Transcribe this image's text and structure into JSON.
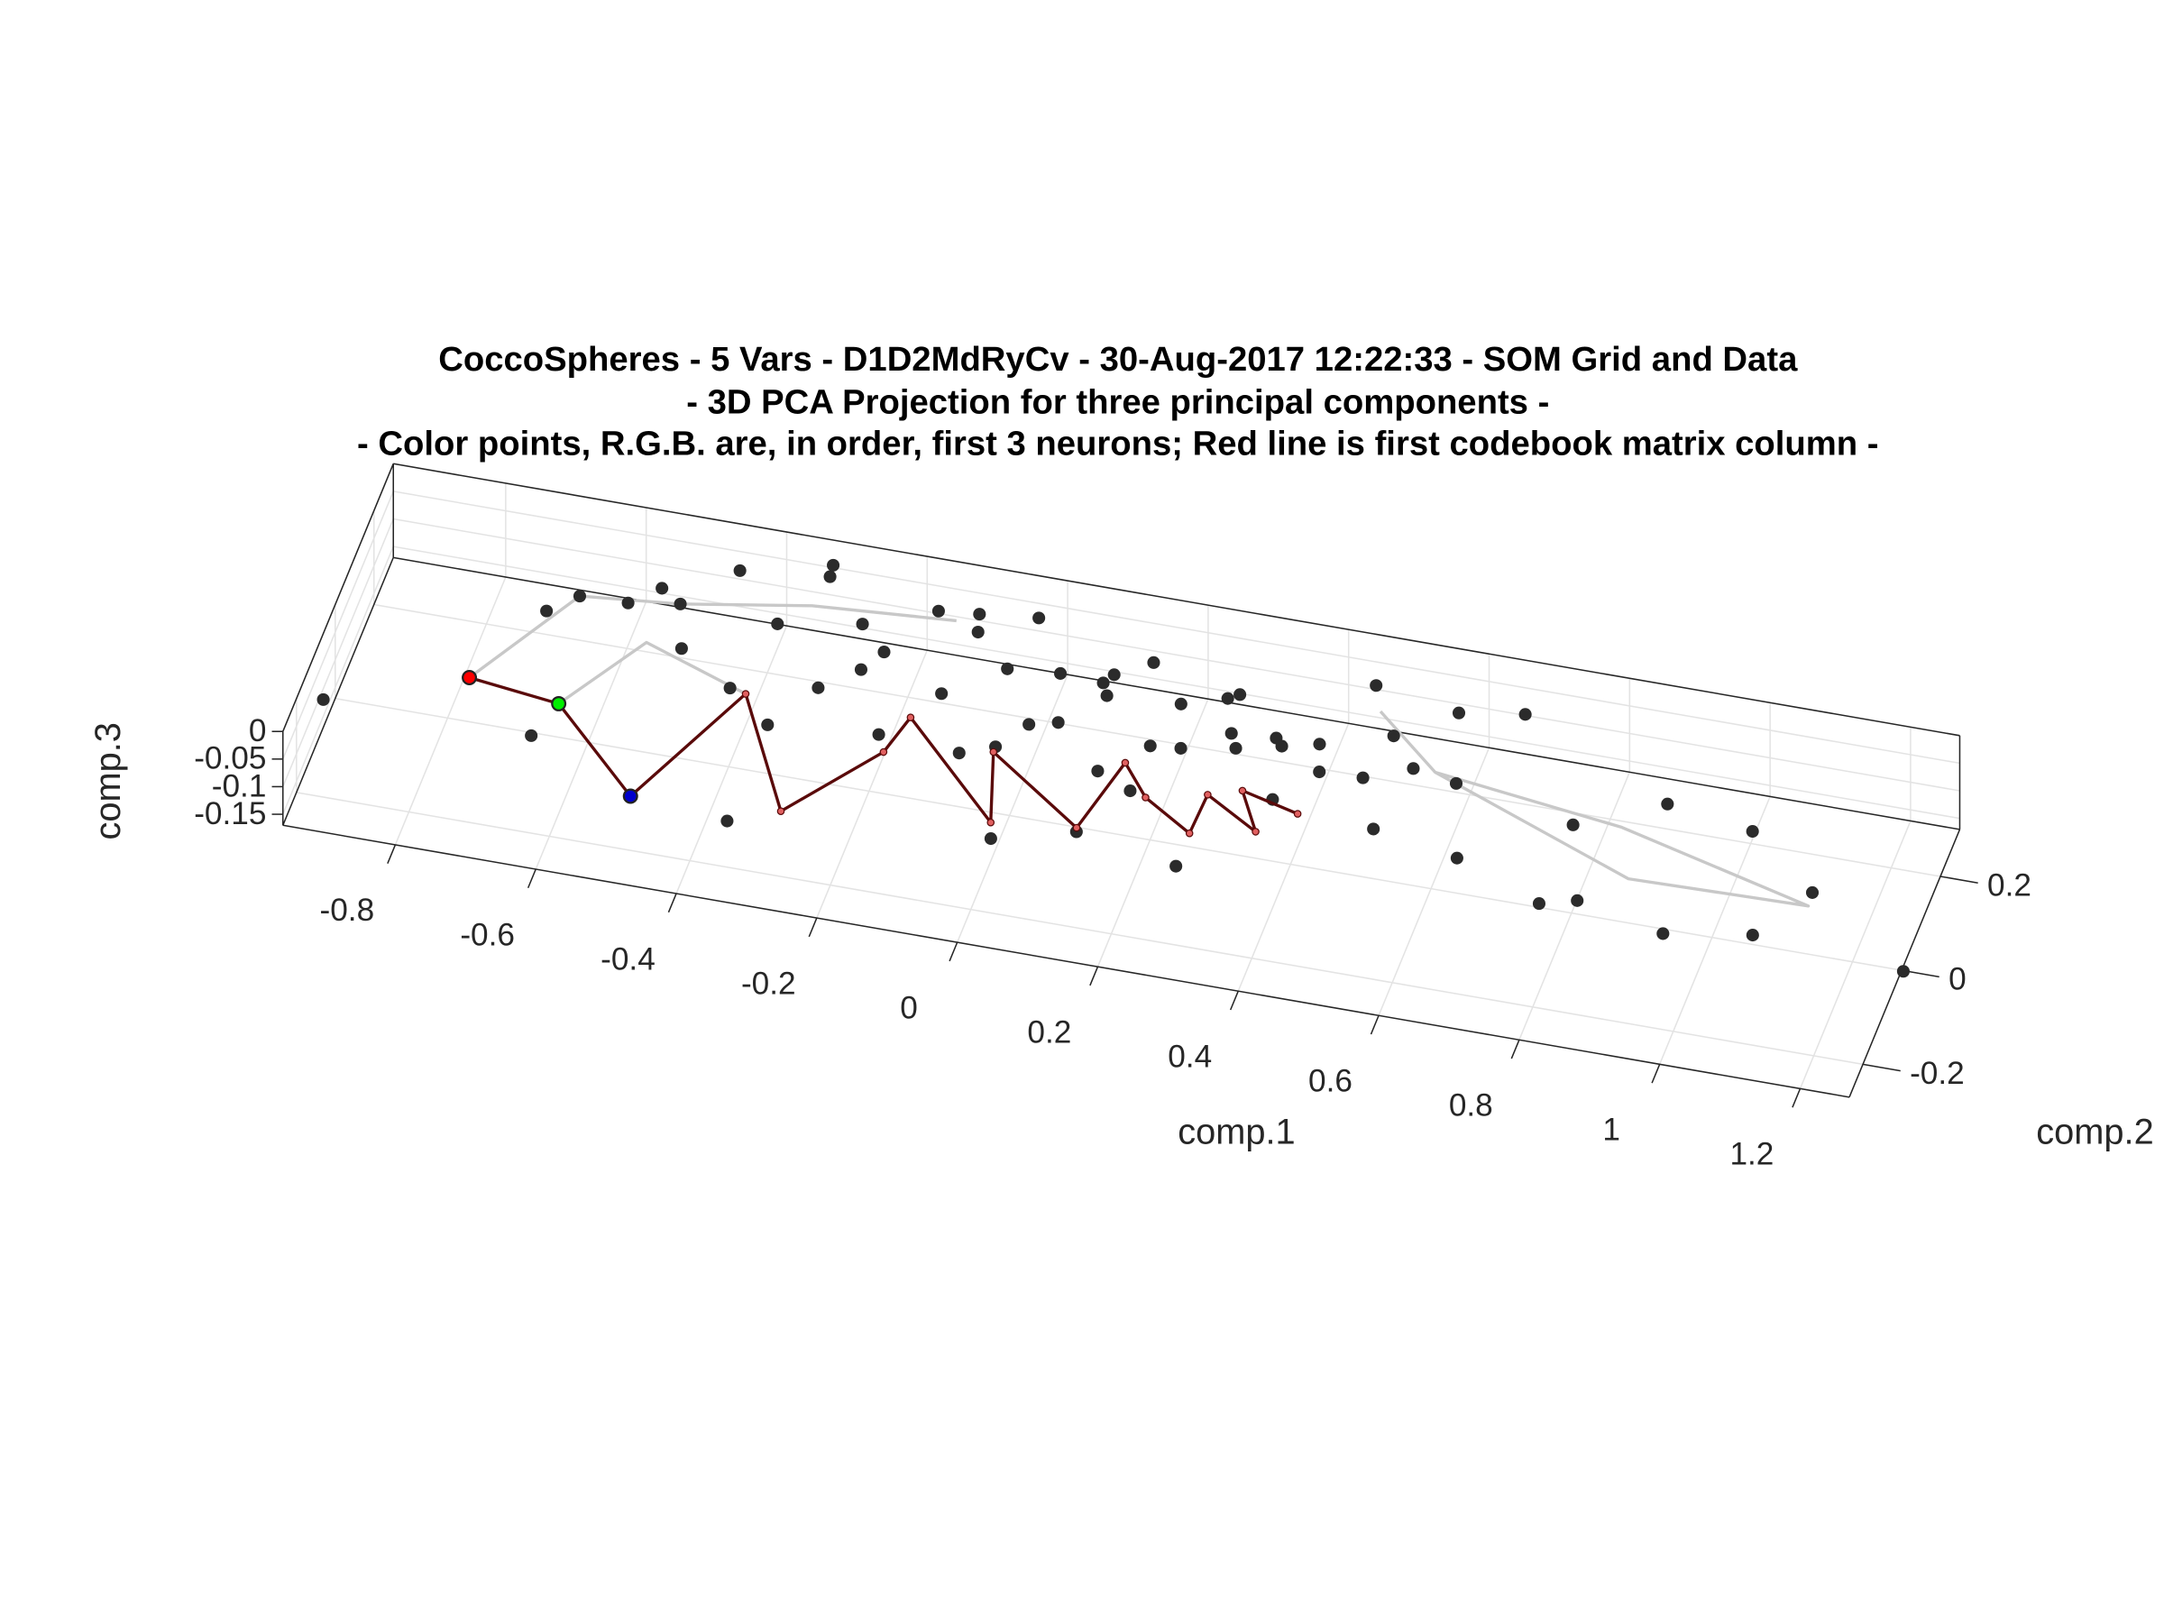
{
  "chart_data": {
    "type": "scatter3d",
    "title": [
      "CoccoSpheres - 5 Vars - D1D2MdRyCv - 30-Aug-2017 12:22:33 - SOM Grid and Data",
      "- 3D PCA Projection for three principal components -",
      "- Color points, R.G.B. are, in order, first 3 neurons; Red line is first codebook matrix column -"
    ],
    "xlabel": "comp.1",
    "ylabel": "comp.2",
    "zlabel": "comp.3",
    "xlim": [
      -0.96,
      1.27
    ],
    "ylim": [
      -0.27,
      0.3
    ],
    "zlim": [
      -0.17,
      0
    ],
    "xticks": [
      -0.8,
      -0.6,
      -0.4,
      -0.2,
      0,
      0.2,
      0.4,
      0.6,
      0.8,
      1,
      1.2
    ],
    "yticks": [
      -0.2,
      0,
      0.2
    ],
    "zticks": [
      -0.15,
      -0.1,
      -0.05,
      0
    ],
    "grid": true,
    "series": [
      {
        "kind": "line",
        "color": "#c8c8c8",
        "x": [
          -0.766,
          -0.664,
          -0.526,
          -0.35,
          -0.15
        ],
        "y": [
          -0.011,
          0.189,
          0.208,
          0.25,
          0.27
        ],
        "z": [
          -0.08,
          -0.08,
          -0.08,
          -0.08,
          -0.08
        ]
      },
      {
        "kind": "line",
        "color": "#c8c8c8",
        "x": [
          -0.633,
          -0.55,
          -0.39
        ],
        "y": [
          -0.032,
          0.12,
          0.052
        ],
        "z": [
          -0.08,
          -0.08,
          -0.08
        ]
      },
      {
        "kind": "line",
        "color": "#c8c8c8",
        "x": [
          0.463,
          0.569,
          0.847,
          1.138,
          0.884,
          0.569
        ],
        "y": [
          0.236,
          0.134,
          0.089,
          -0.003,
          -0.011,
          0.134
        ],
        "z": [
          -0.08,
          -0.08,
          -0.08,
          -0.08,
          -0.08,
          -0.08
        ]
      },
      {
        "kind": "points",
        "color": "#2b2b2b",
        "x": [
          -0.55,
          -0.5,
          -0.45,
          -0.42,
          -0.38,
          -0.33,
          -0.3,
          -0.27,
          -0.22,
          -0.2,
          -0.17,
          -0.13,
          -0.1,
          -0.08,
          -0.05,
          -0.03,
          0,
          0.02,
          0.05,
          0.07,
          0.1,
          0.12,
          0.15,
          0.17,
          0.2,
          0.23,
          0.25,
          0.28,
          0.3,
          0.33,
          0.36,
          0.4,
          0.43,
          0.47,
          0.5,
          0.55,
          0.6,
          -0.12,
          -0.02,
          0.08,
          0.18,
          -0.25,
          0.38,
          -0.35,
          0.27,
          -0.948,
          -0.652,
          -0.345,
          -0.32,
          1.3,
          1.136,
          1.023,
          0.96,
          1.08,
          0.828,
          0.779,
          0.568,
          0.657,
          0.443,
          0.645,
          0.276,
          0.015,
          0.125,
          -0.596,
          -0.664,
          -0.7,
          -0.526,
          0.895,
          0.781,
          0.518
        ],
        "y": [
          0.2,
          0.12,
          0.24,
          0.08,
          0.18,
          0.27,
          0.1,
          0.22,
          0.15,
          0.05,
          0.25,
          0.12,
          0.2,
          0.03,
          0.17,
          0.26,
          0.1,
          0.19,
          0.07,
          0.23,
          0.14,
          0.02,
          0.2,
          0.11,
          0.16,
          0.05,
          0.22,
          0.13,
          0.08,
          0.18,
          0.1,
          0.15,
          0.04,
          0.12,
          0.17,
          0.09,
          0.13,
          0.28,
          0.0,
          0.25,
          -0.03,
          0.14,
          -0.02,
          0.02,
          0.21,
          -0.105,
          -0.105,
          -0.207,
          0.25,
          -0.1,
          0.025,
          0.126,
          -0.108,
          -0.08,
          -0.072,
          -0.091,
          0.26,
          0.28,
          0.286,
          -0.029,
          -0.142,
          -0.151,
          -0.108,
          0.192,
          0.189,
          0.148,
          0.208,
          0.151,
          0.077,
          0.0
        ],
        "z": [
          -0.05,
          -0.08,
          -0.03,
          -0.1,
          -0.06,
          -0.04,
          -0.09,
          -0.07,
          -0.05,
          -0.11,
          -0.05,
          -0.08,
          -0.03,
          -0.1,
          -0.06,
          -0.04,
          -0.09,
          -0.07,
          -0.05,
          -0.11,
          -0.05,
          -0.08,
          -0.03,
          -0.1,
          -0.06,
          -0.04,
          -0.09,
          -0.07,
          -0.05,
          -0.11,
          -0.05,
          -0.08,
          -0.03,
          -0.1,
          -0.06,
          -0.04,
          -0.09,
          -0.07,
          -0.05,
          -0.11,
          -0.06,
          -0.08,
          -0.04,
          -0.1,
          -0.07,
          -0.08,
          -0.08,
          -0.08,
          0,
          -0.08,
          -0.08,
          -0.08,
          -0.08,
          -0.08,
          -0.08,
          -0.08,
          -0.08,
          -0.08,
          -0.08,
          -0.08,
          -0.08,
          -0.08,
          -0.08,
          -0.08,
          -0.08,
          -0.08,
          -0.08,
          -0.08,
          -0.08,
          -0.08
        ]
      },
      {
        "kind": "line",
        "color": "#5a0a0a",
        "marker_color": "#e06060",
        "x": [
          -0.766,
          -0.633,
          -0.487,
          -0.39,
          -0.279,
          -0.175,
          -0.158,
          0.006,
          -0.029,
          0.123,
          0.152,
          0.198,
          0.276,
          0.279,
          0.363,
          0.323,
          0.409
        ],
        "y": [
          -0.011,
          -0.032,
          -0.191,
          0.052,
          -0.169,
          -0.016,
          0.062,
          -0.119,
          0.022,
          -0.1,
          0.046,
          -0.016,
          -0.072,
          0.011,
          -0.046,
          0.031,
          0.004
        ],
        "z": [
          -0.08,
          -0.08,
          -0.08,
          -0.08,
          -0.08,
          -0.08,
          -0.08,
          -0.08,
          -0.08,
          -0.08,
          -0.08,
          -0.08,
          -0.08,
          -0.08,
          -0.08,
          -0.08,
          -0.08
        ]
      },
      {
        "kind": "neuron",
        "color": "#ff0000",
        "x": [
          -0.766
        ],
        "y": [
          -0.011
        ],
        "z": [
          -0.08
        ]
      },
      {
        "kind": "neuron",
        "color": "#00ee00",
        "x": [
          -0.633
        ],
        "y": [
          -0.032
        ],
        "z": [
          -0.08
        ]
      },
      {
        "kind": "neuron",
        "color": "#0000cc",
        "x": [
          -0.487
        ],
        "y": [
          -0.191
        ],
        "z": [
          -0.08
        ]
      }
    ]
  }
}
